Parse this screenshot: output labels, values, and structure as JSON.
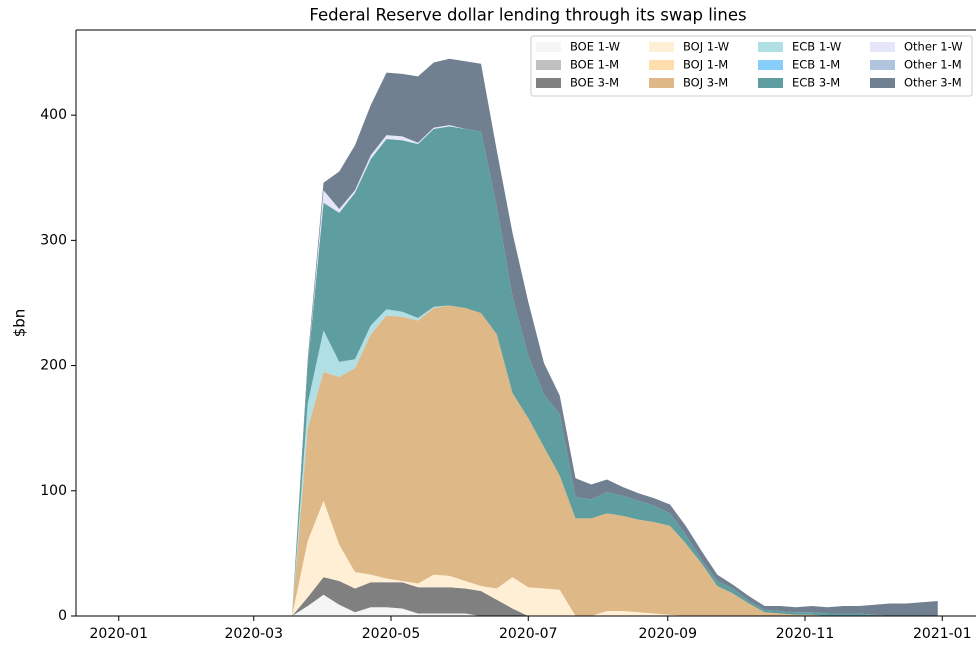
{
  "chart_data": {
    "type": "stacked_area",
    "title": "Federal Reserve dollar lending through its swap lines",
    "ylabel": "$bn",
    "x": [
      "2020-03-18",
      "2020-03-25",
      "2020-04-01",
      "2020-04-08",
      "2020-04-15",
      "2020-04-22",
      "2020-04-29",
      "2020-05-06",
      "2020-05-13",
      "2020-05-20",
      "2020-05-27",
      "2020-06-03",
      "2020-06-10",
      "2020-06-17",
      "2020-06-24",
      "2020-07-01",
      "2020-07-08",
      "2020-07-15",
      "2020-07-22",
      "2020-07-29",
      "2020-08-05",
      "2020-08-12",
      "2020-08-19",
      "2020-08-26",
      "2020-09-02",
      "2020-09-09",
      "2020-09-16",
      "2020-09-23",
      "2020-09-30",
      "2020-10-07",
      "2020-10-14",
      "2020-10-21",
      "2020-10-28",
      "2020-11-04",
      "2020-11-11",
      "2020-11-18",
      "2020-11-25",
      "2020-12-02",
      "2020-12-09",
      "2020-12-16",
      "2020-12-23",
      "2020-12-30"
    ],
    "series": [
      {
        "name": "BOE 1-W",
        "color": "#f5f5f5",
        "values": [
          0,
          8,
          17,
          9,
          3,
          7,
          7,
          6,
          2,
          2,
          2,
          2,
          0,
          0,
          0,
          0,
          0,
          0,
          0,
          0,
          0,
          0,
          0,
          0,
          0,
          0,
          0,
          0,
          0,
          0,
          0,
          0,
          0,
          0,
          0,
          0,
          0,
          0,
          0,
          0,
          0,
          0
        ]
      },
      {
        "name": "BOE 1-M",
        "color": "#c0c0c0",
        "values": [
          0,
          0,
          0,
          0,
          0,
          0,
          0,
          0,
          0,
          0,
          0,
          0,
          0,
          0,
          0,
          0,
          0,
          0,
          0,
          0,
          0,
          0,
          0,
          0,
          0,
          0,
          0,
          0,
          0,
          0,
          0,
          0,
          0,
          0,
          0,
          0,
          0,
          0,
          0,
          0,
          0,
          0
        ]
      },
      {
        "name": "BOE 3-M",
        "color": "#808080",
        "values": [
          0,
          7,
          14,
          19,
          19,
          20,
          20,
          21,
          21,
          21,
          21,
          20,
          20,
          13,
          6,
          0,
          0,
          0,
          0,
          0,
          0,
          0,
          0,
          0,
          0,
          0,
          0,
          0,
          0,
          0,
          0,
          0,
          0,
          0,
          0,
          0,
          0,
          0,
          0,
          0,
          0,
          0
        ]
      },
      {
        "name": "BOJ 1-W",
        "color": "#ffefd5",
        "values": [
          0,
          45,
          61,
          29,
          13,
          6,
          3,
          1,
          3,
          10,
          9,
          6,
          4,
          9,
          25,
          23,
          22,
          21,
          0,
          0,
          4,
          4,
          3,
          2,
          1,
          0,
          0,
          0,
          0,
          0,
          0,
          0,
          0,
          0,
          0,
          0,
          0,
          0,
          0,
          0,
          0,
          0
        ]
      },
      {
        "name": "BOJ 1-M",
        "color": "#ffdead",
        "values": [
          0,
          0,
          0,
          0,
          0,
          0,
          0,
          0,
          0,
          0,
          0,
          0,
          0,
          0,
          0,
          0,
          0,
          0,
          0,
          0,
          0,
          0,
          0,
          0,
          0,
          0,
          0,
          0,
          0,
          0,
          0,
          0,
          0,
          0,
          0,
          0,
          0,
          0,
          0,
          0,
          0,
          0
        ]
      },
      {
        "name": "BOJ 3-M",
        "color": "#deb887",
        "values": [
          0,
          90,
          103,
          134,
          163,
          192,
          210,
          211,
          210,
          213,
          216,
          218,
          218,
          203,
          147,
          135,
          113,
          91,
          78,
          78,
          78,
          76,
          74,
          73,
          71,
          58,
          42,
          24,
          18,
          10,
          3,
          2,
          1,
          1,
          0,
          0,
          0,
          0,
          0,
          0,
          0,
          0
        ]
      },
      {
        "name": "ECB 1-W",
        "color": "#b0e0e6",
        "values": [
          0,
          20,
          33,
          12,
          7,
          7,
          5,
          4,
          2,
          1,
          0,
          0,
          0,
          0,
          0,
          0,
          0,
          0,
          0,
          0,
          0,
          0,
          0,
          0,
          0,
          0,
          0,
          0,
          0,
          0,
          0,
          0,
          0,
          0,
          0,
          0,
          0,
          0,
          0,
          0,
          0,
          0
        ]
      },
      {
        "name": "ECB 1-M",
        "color": "#87cefa",
        "values": [
          0,
          0,
          0,
          0,
          0,
          0,
          0,
          0,
          0,
          0,
          0,
          0,
          0,
          0,
          0,
          0,
          0,
          0,
          0,
          0,
          0,
          0,
          0,
          0,
          0,
          0,
          0,
          0,
          0,
          0,
          0,
          0,
          0,
          0,
          0,
          0,
          0,
          0,
          0,
          0,
          0,
          0
        ]
      },
      {
        "name": "ECB 3-M",
        "color": "#5f9ea0",
        "values": [
          0,
          30,
          102,
          119,
          133,
          133,
          136,
          137,
          139,
          142,
          143,
          143,
          145,
          102,
          77,
          50,
          42,
          49,
          17,
          15,
          17,
          16,
          15,
          13,
          10,
          7,
          3,
          4,
          4,
          2,
          2,
          2,
          2,
          2,
          2,
          2,
          2,
          1,
          0,
          0,
          0,
          0
        ]
      },
      {
        "name": "Other 1-W",
        "color": "#e6e6fa",
        "values": [
          0,
          0,
          10,
          3,
          2,
          3,
          3,
          3,
          1,
          1,
          1,
          0,
          0,
          0,
          0,
          0,
          0,
          0,
          0,
          0,
          0,
          0,
          0,
          0,
          0,
          0,
          0,
          0,
          0,
          0,
          0,
          0,
          0,
          0,
          0,
          0,
          0,
          0,
          0,
          0,
          0,
          0
        ]
      },
      {
        "name": "Other 1-M",
        "color": "#b0c4de",
        "values": [
          0,
          0,
          0,
          0,
          0,
          0,
          0,
          0,
          0,
          0,
          0,
          0,
          0,
          0,
          0,
          0,
          0,
          0,
          0,
          0,
          0,
          0,
          0,
          0,
          0,
          0,
          0,
          0,
          0,
          0,
          0,
          0,
          0,
          0,
          0,
          0,
          0,
          0,
          0,
          0,
          0,
          0
        ]
      },
      {
        "name": "Other 3-M",
        "color": "#708090",
        "values": [
          0,
          5,
          6,
          30,
          36,
          40,
          50,
          50,
          53,
          52,
          53,
          54,
          54,
          45,
          51,
          43,
          25,
          15,
          15,
          12,
          10,
          7,
          6,
          6,
          7,
          7,
          7,
          5,
          3,
          4,
          3,
          4,
          4,
          5,
          5,
          6,
          6,
          8,
          10,
          10,
          11,
          12
        ]
      }
    ],
    "xlim": [
      "2019-12-13",
      "2021-01-16"
    ],
    "xticks": [
      {
        "value": "2020-01-01",
        "label": "2020-01"
      },
      {
        "value": "2020-03-01",
        "label": "2020-03"
      },
      {
        "value": "2020-05-01",
        "label": "2020-05"
      },
      {
        "value": "2020-07-01",
        "label": "2020-07"
      },
      {
        "value": "2020-09-01",
        "label": "2020-09"
      },
      {
        "value": "2020-11-01",
        "label": "2020-11"
      },
      {
        "value": "2021-01-01",
        "label": "2021-01"
      }
    ],
    "ylim": [
      0,
      468
    ],
    "yticks": [
      0,
      100,
      200,
      300,
      400
    ],
    "grid": false,
    "legend": "upper right"
  }
}
